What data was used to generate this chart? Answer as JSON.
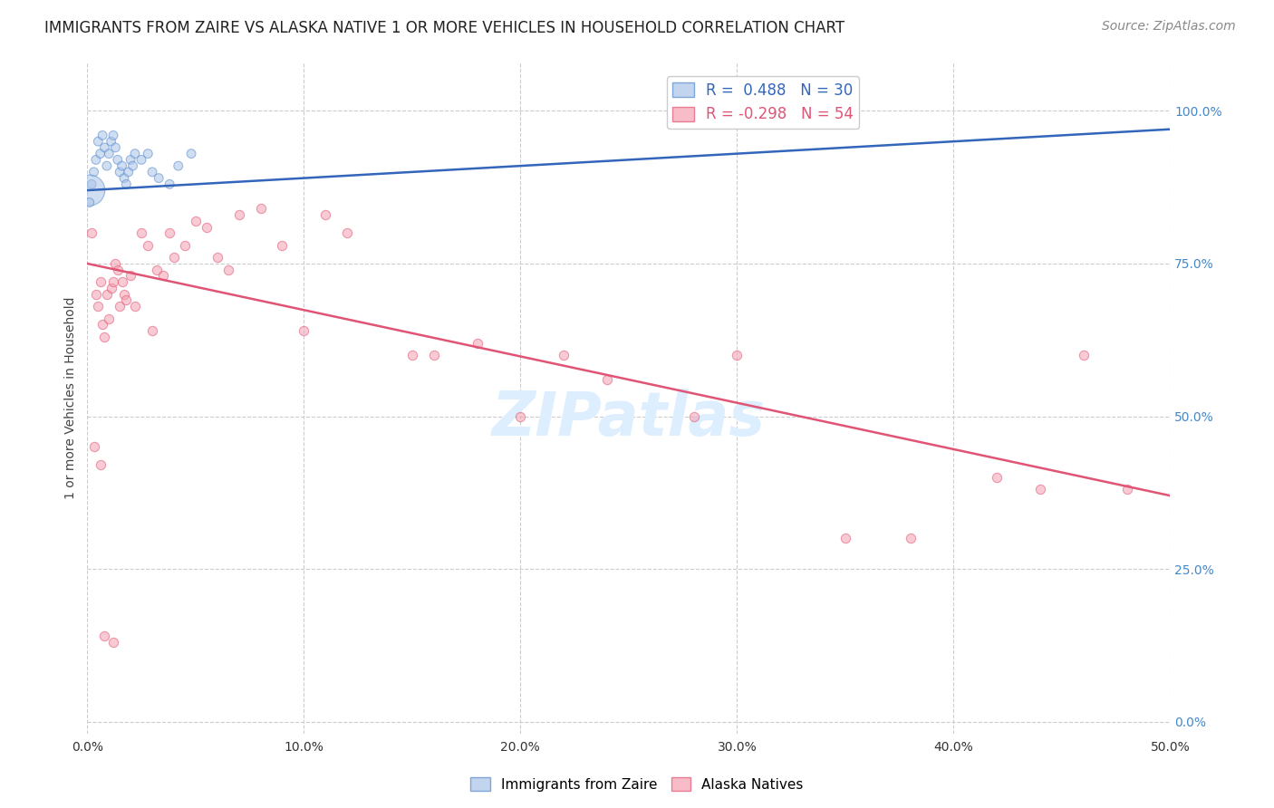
{
  "title": "IMMIGRANTS FROM ZAIRE VS ALASKA NATIVE 1 OR MORE VEHICLES IN HOUSEHOLD CORRELATION CHART",
  "source": "Source: ZipAtlas.com",
  "ylabel": "1 or more Vehicles in Household",
  "xlim": [
    0.0,
    0.5
  ],
  "ylim": [
    -0.02,
    1.08
  ],
  "title_fontsize": 12,
  "source_fontsize": 10,
  "ylabel_fontsize": 10,
  "background_color": "#ffffff",
  "grid_color": "#cccccc",
  "legend_R_blue": "0.488",
  "legend_N_blue": "30",
  "legend_R_pink": "-0.298",
  "legend_N_pink": "54",
  "blue_color": "#aac4e8",
  "pink_color": "#f4a0b0",
  "blue_edge_color": "#5588cc",
  "pink_edge_color": "#e05575",
  "blue_line_color": "#3366bb",
  "pink_line_color": "#e05575",
  "watermark_color": "#ddeeff",
  "blue_scatter_x": [
    0.002,
    0.003,
    0.004,
    0.005,
    0.006,
    0.007,
    0.008,
    0.009,
    0.01,
    0.011,
    0.012,
    0.013,
    0.014,
    0.015,
    0.016,
    0.017,
    0.018,
    0.019,
    0.02,
    0.021,
    0.022,
    0.025,
    0.028,
    0.03,
    0.033,
    0.038,
    0.042,
    0.048,
    0.001,
    0.001
  ],
  "blue_scatter_y": [
    0.88,
    0.9,
    0.92,
    0.95,
    0.93,
    0.96,
    0.94,
    0.91,
    0.93,
    0.95,
    0.96,
    0.94,
    0.92,
    0.9,
    0.91,
    0.89,
    0.88,
    0.9,
    0.92,
    0.91,
    0.93,
    0.92,
    0.93,
    0.9,
    0.89,
    0.88,
    0.91,
    0.93,
    0.87,
    0.85
  ],
  "blue_scatter_sizes": [
    50,
    50,
    50,
    50,
    50,
    50,
    50,
    50,
    50,
    50,
    50,
    50,
    50,
    50,
    50,
    50,
    50,
    50,
    50,
    50,
    50,
    50,
    50,
    50,
    50,
    50,
    50,
    50,
    600,
    50
  ],
  "pink_scatter_x": [
    0.002,
    0.004,
    0.005,
    0.006,
    0.007,
    0.008,
    0.009,
    0.01,
    0.011,
    0.012,
    0.013,
    0.014,
    0.015,
    0.016,
    0.017,
    0.018,
    0.02,
    0.022,
    0.025,
    0.028,
    0.03,
    0.032,
    0.035,
    0.038,
    0.04,
    0.045,
    0.05,
    0.055,
    0.06,
    0.065,
    0.07,
    0.08,
    0.09,
    0.1,
    0.11,
    0.12,
    0.15,
    0.16,
    0.18,
    0.2,
    0.22,
    0.24,
    0.28,
    0.3,
    0.35,
    0.38,
    0.42,
    0.44,
    0.46,
    0.48,
    0.003,
    0.006,
    0.008,
    0.012
  ],
  "pink_scatter_y": [
    0.8,
    0.7,
    0.68,
    0.72,
    0.65,
    0.63,
    0.7,
    0.66,
    0.71,
    0.72,
    0.75,
    0.74,
    0.68,
    0.72,
    0.7,
    0.69,
    0.73,
    0.68,
    0.8,
    0.78,
    0.64,
    0.74,
    0.73,
    0.8,
    0.76,
    0.78,
    0.82,
    0.81,
    0.76,
    0.74,
    0.83,
    0.84,
    0.78,
    0.64,
    0.83,
    0.8,
    0.6,
    0.6,
    0.62,
    0.5,
    0.6,
    0.56,
    0.5,
    0.6,
    0.3,
    0.3,
    0.4,
    0.38,
    0.6,
    0.38,
    0.45,
    0.42,
    0.14,
    0.13
  ],
  "blue_trendline_x": [
    0.0,
    0.5
  ],
  "blue_trendline_y": [
    0.87,
    0.97
  ],
  "pink_trendline_x": [
    0.0,
    0.5
  ],
  "pink_trendline_y": [
    0.75,
    0.37
  ],
  "ytick_vals": [
    0.0,
    0.25,
    0.5,
    0.75,
    1.0
  ],
  "ytick_labels": [
    "0.0%",
    "25.0%",
    "50.0%",
    "75.0%",
    "100.0%"
  ],
  "xtick_vals": [
    0.0,
    0.1,
    0.2,
    0.3,
    0.4,
    0.5
  ],
  "xtick_labels": [
    "0.0%",
    "10.0%",
    "20.0%",
    "30.0%",
    "40.0%",
    "50.0%"
  ]
}
